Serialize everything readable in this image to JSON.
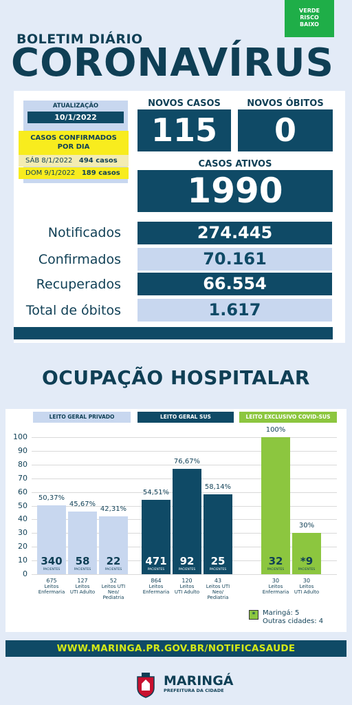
{
  "risk": {
    "line1": "VERDE",
    "line2": "RISCO",
    "line3": "BAIXO",
    "color": "#1fae48"
  },
  "header": {
    "subtitle": "BOLETIM DIÁRIO",
    "title": "CORONAVÍRUS"
  },
  "update": {
    "label": "ATUALIZAÇÃO",
    "date": "10/1/2022"
  },
  "confirmed_by_day": {
    "title_line1": "CASOS CONFIRMADOS",
    "title_line2": "POR DIA",
    "days": [
      {
        "day": "SÁB 8/1/2022",
        "cases": "494 casos"
      },
      {
        "day": "DOM 9/1/2022",
        "cases": "189 casos"
      }
    ]
  },
  "new_cases": {
    "label": "NOVOS CASOS",
    "value": "115"
  },
  "new_deaths": {
    "label": "NOVOS ÓBITOS",
    "value": "0"
  },
  "active_cases": {
    "label": "CASOS ATIVOS",
    "value": "1990"
  },
  "stats": [
    {
      "label": "Notificados",
      "value": "274.445"
    },
    {
      "label": "Confirmados",
      "value": "70.161"
    },
    {
      "label": "Recuperados",
      "value": "66.554"
    },
    {
      "label": "Total de óbitos",
      "value": "1.617"
    }
  ],
  "occupancy_title": "OCUPAÇÃO HOSPITALAR",
  "colors": {
    "dark": "#0f4a66",
    "light": "#c8d7ef",
    "green": "#8cc63f",
    "yellow": "#f8ec1e",
    "lime": "#d4ea17"
  },
  "chart_data": {
    "type": "bar",
    "ylim": [
      0,
      100
    ],
    "yticks": [
      "0",
      "10",
      "20",
      "30",
      "40",
      "50",
      "60",
      "70",
      "80",
      "90",
      "100"
    ],
    "groups": [
      {
        "name": "LEITO GERAL PRIVADO",
        "color": "#c8d7ef",
        "bars": [
          {
            "pct_label": "50,37%",
            "value": 50.37,
            "patients": "340",
            "patients_label": "PACIENTES",
            "beds": "675",
            "bed_type_l1": "Leitos",
            "bed_type_l2": "Enfermaria",
            "bed_type_l3": ""
          },
          {
            "pct_label": "45,67%",
            "value": 45.67,
            "patients": "58",
            "patients_label": "PACIENTES",
            "beds": "127",
            "bed_type_l1": "Leitos",
            "bed_type_l2": "UTI Adulto",
            "bed_type_l3": ""
          },
          {
            "pct_label": "42,31%",
            "value": 42.31,
            "patients": "22",
            "patients_label": "PACIENTES",
            "beds": "52",
            "bed_type_l1": "Leitos UTI",
            "bed_type_l2": "Neo/",
            "bed_type_l3": "Pediatria"
          }
        ]
      },
      {
        "name": "LEITO GERAL SUS",
        "color": "#0f4a66",
        "bars": [
          {
            "pct_label": "54,51%",
            "value": 54.51,
            "patients": "471",
            "patients_label": "PACIENTES",
            "beds": "864",
            "bed_type_l1": "Leitos",
            "bed_type_l2": "Enfermaria",
            "bed_type_l3": ""
          },
          {
            "pct_label": "76,67%",
            "value": 76.67,
            "patients": "92",
            "patients_label": "PACIENTES",
            "beds": "120",
            "bed_type_l1": "Leitos",
            "bed_type_l2": "UTI Adulto",
            "bed_type_l3": ""
          },
          {
            "pct_label": "58,14%",
            "value": 58.14,
            "patients": "25",
            "patients_label": "PACIENTES",
            "beds": "43",
            "bed_type_l1": "Leitos UTI",
            "bed_type_l2": "Neo/",
            "bed_type_l3": "Pediatria"
          }
        ]
      },
      {
        "name": "LEITO EXCLUSIVO COVID-SUS",
        "color": "#8cc63f",
        "bars": [
          {
            "pct_label": "100%",
            "value": 100,
            "patients": "32",
            "patients_label": "PACIENTES",
            "beds": "30",
            "bed_type_l1": "Leitos",
            "bed_type_l2": "Enfermaria",
            "bed_type_l3": ""
          },
          {
            "pct_label": "30%",
            "value": 30,
            "patients": "*9",
            "patients_label": "PACIENTES",
            "beds": "30",
            "bed_type_l1": "Leitos",
            "bed_type_l2": "UTI Adulto",
            "bed_type_l3": ""
          }
        ]
      }
    ]
  },
  "legend": {
    "icon": "*",
    "line1": "Maringá: 5",
    "line2": "Outras cidades: 4"
  },
  "url": "WWW.MARINGA.PR.GOV.BR/NOTIFICASAUDE",
  "footer": {
    "brand": "MARINGÁ",
    "tagline": "PREFEITURA DA CIDADE"
  }
}
